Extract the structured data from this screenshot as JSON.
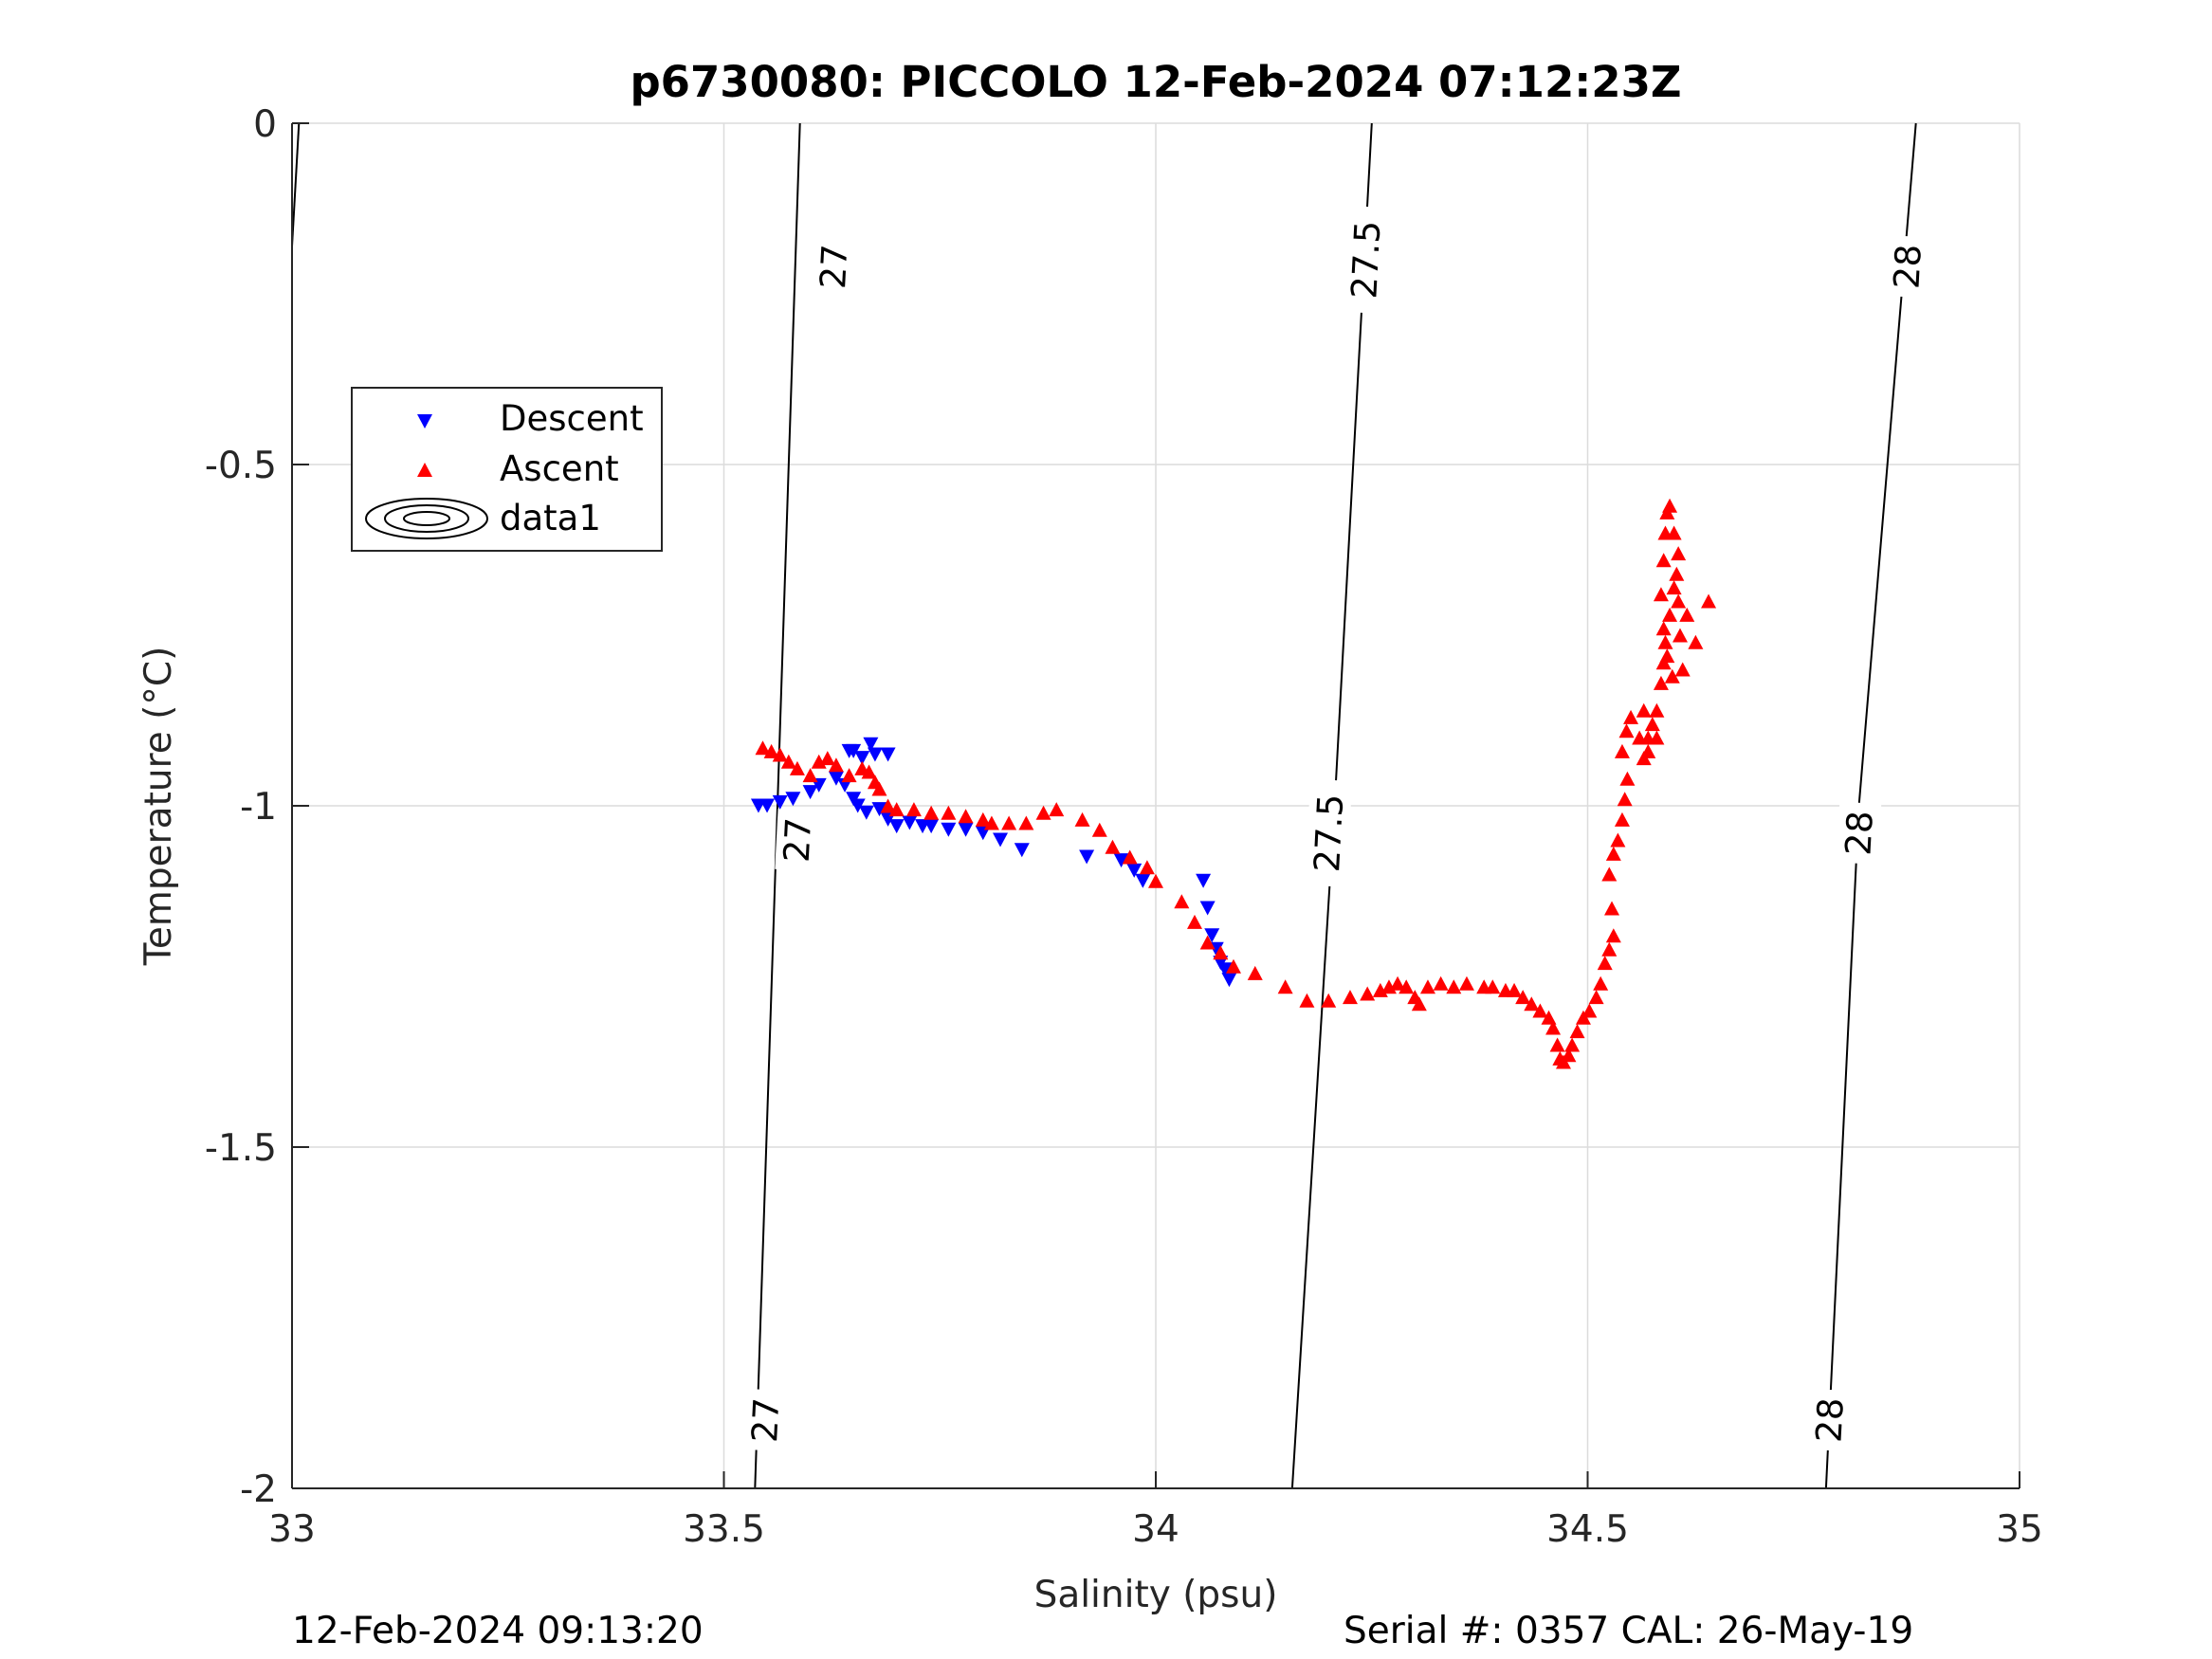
{
  "chart_data": {
    "type": "scatter",
    "title": "p6730080: PICCOLO 12-Feb-2024 07:12:23Z",
    "xlabel": "Salinity (psu)",
    "ylabel": "Temperature (°C)",
    "xlim": [
      33,
      35
    ],
    "ylim": [
      -2,
      0
    ],
    "xticks": [
      33,
      33.5,
      34,
      34.5,
      35
    ],
    "xtick_labels": [
      "33",
      "33.5",
      "34",
      "34.5",
      "35"
    ],
    "yticks": [
      0,
      -0.5,
      -1,
      -1.5,
      -2
    ],
    "ytick_labels": [
      "0",
      "-0.5",
      "-1",
      "-1.5",
      "-2"
    ],
    "grid": true,
    "legend_position": "top-left",
    "legend": [
      "Descent",
      "Ascent",
      "data1"
    ],
    "colors": {
      "descent": "#0000ff",
      "ascent": "#ff0000",
      "contour": "#000000",
      "grid": "#dcdcdc",
      "axis": "#262626"
    },
    "series": [
      {
        "name": "Descent",
        "marker": "triangle-down",
        "points": [
          [
            33.54,
            -1.0
          ],
          [
            33.55,
            -1.0
          ],
          [
            33.565,
            -0.995
          ],
          [
            33.58,
            -0.99
          ],
          [
            33.6,
            -0.98
          ],
          [
            33.61,
            -0.97
          ],
          [
            33.63,
            -0.96
          ],
          [
            33.645,
            -0.92
          ],
          [
            33.65,
            -0.92
          ],
          [
            33.66,
            -0.93
          ],
          [
            33.67,
            -0.91
          ],
          [
            33.675,
            -0.925
          ],
          [
            33.69,
            -0.925
          ],
          [
            33.64,
            -0.97
          ],
          [
            33.65,
            -0.99
          ],
          [
            33.655,
            -1.0
          ],
          [
            33.665,
            -1.01
          ],
          [
            33.68,
            -1.005
          ],
          [
            33.69,
            -1.02
          ],
          [
            33.7,
            -1.03
          ],
          [
            33.715,
            -1.025
          ],
          [
            33.73,
            -1.03
          ],
          [
            33.74,
            -1.03
          ],
          [
            33.76,
            -1.035
          ],
          [
            33.78,
            -1.035
          ],
          [
            33.8,
            -1.04
          ],
          [
            33.82,
            -1.05
          ],
          [
            33.845,
            -1.065
          ],
          [
            33.92,
            -1.075
          ],
          [
            33.96,
            -1.08
          ],
          [
            33.975,
            -1.095
          ],
          [
            33.985,
            -1.11
          ],
          [
            34.055,
            -1.11
          ],
          [
            34.06,
            -1.15
          ],
          [
            34.065,
            -1.19
          ],
          [
            34.07,
            -1.21
          ],
          [
            34.075,
            -1.23
          ],
          [
            34.08,
            -1.24
          ],
          [
            34.085,
            -1.255
          ]
        ]
      },
      {
        "name": "Ascent",
        "marker": "triangle-up",
        "points": [
          [
            33.545,
            -0.915
          ],
          [
            33.555,
            -0.92
          ],
          [
            33.565,
            -0.925
          ],
          [
            33.575,
            -0.935
          ],
          [
            33.585,
            -0.945
          ],
          [
            33.6,
            -0.955
          ],
          [
            33.61,
            -0.935
          ],
          [
            33.62,
            -0.93
          ],
          [
            33.63,
            -0.94
          ],
          [
            33.645,
            -0.955
          ],
          [
            33.66,
            -0.945
          ],
          [
            33.668,
            -0.95
          ],
          [
            33.675,
            -0.965
          ],
          [
            33.68,
            -0.975
          ],
          [
            33.69,
            -1.0
          ],
          [
            33.7,
            -1.005
          ],
          [
            33.72,
            -1.005
          ],
          [
            33.74,
            -1.01
          ],
          [
            33.76,
            -1.01
          ],
          [
            33.78,
            -1.015
          ],
          [
            33.8,
            -1.02
          ],
          [
            33.81,
            -1.025
          ],
          [
            33.83,
            -1.025
          ],
          [
            33.85,
            -1.025
          ],
          [
            33.87,
            -1.01
          ],
          [
            33.885,
            -1.005
          ],
          [
            33.915,
            -1.02
          ],
          [
            33.935,
            -1.035
          ],
          [
            33.95,
            -1.06
          ],
          [
            33.97,
            -1.075
          ],
          [
            33.99,
            -1.09
          ],
          [
            34.0,
            -1.11
          ],
          [
            34.03,
            -1.14
          ],
          [
            34.045,
            -1.17
          ],
          [
            34.06,
            -1.2
          ],
          [
            34.075,
            -1.215
          ],
          [
            34.09,
            -1.235
          ],
          [
            34.115,
            -1.245
          ],
          [
            34.15,
            -1.265
          ],
          [
            34.175,
            -1.285
          ],
          [
            34.2,
            -1.285
          ],
          [
            34.225,
            -1.28
          ],
          [
            34.245,
            -1.275
          ],
          [
            34.26,
            -1.27
          ],
          [
            34.27,
            -1.265
          ],
          [
            34.28,
            -1.26
          ],
          [
            34.29,
            -1.265
          ],
          [
            34.3,
            -1.28
          ],
          [
            34.305,
            -1.29
          ],
          [
            34.315,
            -1.265
          ],
          [
            34.33,
            -1.26
          ],
          [
            34.345,
            -1.265
          ],
          [
            34.36,
            -1.26
          ],
          [
            34.38,
            -1.265
          ],
          [
            34.39,
            -1.265
          ],
          [
            34.405,
            -1.27
          ],
          [
            34.415,
            -1.27
          ],
          [
            34.425,
            -1.28
          ],
          [
            34.435,
            -1.29
          ],
          [
            34.445,
            -1.3
          ],
          [
            34.455,
            -1.31
          ],
          [
            34.46,
            -1.325
          ],
          [
            34.465,
            -1.35
          ],
          [
            34.468,
            -1.37
          ],
          [
            34.472,
            -1.375
          ],
          [
            34.478,
            -1.365
          ],
          [
            34.482,
            -1.35
          ],
          [
            34.488,
            -1.33
          ],
          [
            34.495,
            -1.31
          ],
          [
            34.502,
            -1.3
          ],
          [
            34.51,
            -1.28
          ],
          [
            34.515,
            -1.26
          ],
          [
            34.52,
            -1.23
          ],
          [
            34.525,
            -1.21
          ],
          [
            34.53,
            -1.19
          ],
          [
            34.528,
            -1.15
          ],
          [
            34.525,
            -1.1
          ],
          [
            34.53,
            -1.07
          ],
          [
            34.535,
            -1.05
          ],
          [
            34.54,
            -1.02
          ],
          [
            34.543,
            -0.99
          ],
          [
            34.546,
            -0.96
          ],
          [
            34.54,
            -0.92
          ],
          [
            34.545,
            -0.89
          ],
          [
            34.55,
            -0.87
          ],
          [
            34.56,
            -0.9
          ],
          [
            34.565,
            -0.93
          ],
          [
            34.57,
            -0.9
          ],
          [
            34.575,
            -0.88
          ],
          [
            34.58,
            -0.86
          ],
          [
            34.585,
            -0.82
          ],
          [
            34.588,
            -0.79
          ],
          [
            34.59,
            -0.76
          ],
          [
            34.595,
            -0.72
          ],
          [
            34.6,
            -0.68
          ],
          [
            34.603,
            -0.66
          ],
          [
            34.605,
            -0.7
          ],
          [
            34.607,
            -0.75
          ],
          [
            34.61,
            -0.8
          ],
          [
            34.598,
            -0.81
          ],
          [
            34.592,
            -0.78
          ],
          [
            34.588,
            -0.74
          ],
          [
            34.585,
            -0.69
          ],
          [
            34.588,
            -0.64
          ],
          [
            34.59,
            -0.6
          ],
          [
            34.592,
            -0.57
          ],
          [
            34.595,
            -0.56
          ],
          [
            34.6,
            -0.6
          ],
          [
            34.605,
            -0.63
          ],
          [
            34.615,
            -0.72
          ],
          [
            34.625,
            -0.76
          ],
          [
            34.64,
            -0.7
          ],
          [
            34.58,
            -0.9
          ],
          [
            34.57,
            -0.92
          ],
          [
            34.565,
            -0.86
          ]
        ]
      }
    ],
    "contours": [
      {
        "label": "27",
        "points": [
          [
            33.536,
            -2.0
          ],
          [
            33.562,
            -1.0
          ],
          [
            33.588,
            0.0
          ]
        ]
      },
      {
        "label": "27.5",
        "points": [
          [
            34.158,
            -2.0
          ],
          [
            34.207,
            -1.0
          ],
          [
            34.25,
            0.0
          ]
        ]
      },
      {
        "label": "28",
        "points": [
          [
            34.776,
            -2.0
          ],
          [
            34.814,
            -1.0
          ],
          [
            34.88,
            0.0
          ]
        ]
      },
      {
        "label": "",
        "points": [
          [
            33.0,
            -0.18
          ],
          [
            33.008,
            0.0
          ]
        ]
      }
    ],
    "contour_labels": [
      {
        "text": "27",
        "x": 33.627,
        "y": -0.21
      },
      {
        "text": "27",
        "x": 33.585,
        "y": -1.05
      },
      {
        "text": "27",
        "x": 33.548,
        "y": -1.9
      },
      {
        "text": "27.5",
        "x": 34.243,
        "y": -0.2
      },
      {
        "text": "27.5",
        "x": 34.2,
        "y": -1.04
      },
      {
        "text": "27.5",
        "x": 34.2,
        "y": -1.04
      },
      {
        "text": "28",
        "x": 34.87,
        "y": -0.21
      },
      {
        "text": "28",
        "x": 34.814,
        "y": -1.04
      },
      {
        "text": "28",
        "x": 34.78,
        "y": -1.9
      }
    ]
  },
  "footer": {
    "left": "12-Feb-2024 09:13:20",
    "right": "Serial #: 0357  CAL: 26-May-19"
  }
}
